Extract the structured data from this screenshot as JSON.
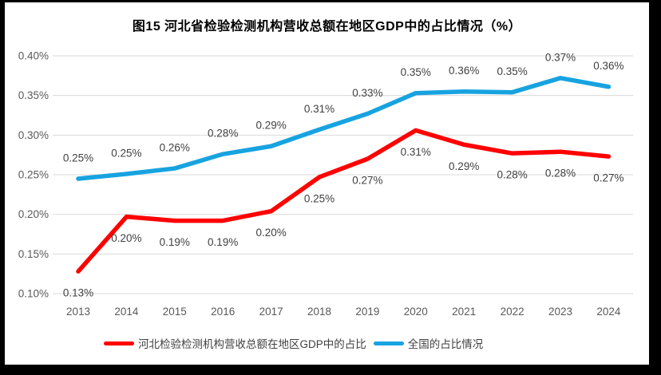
{
  "frame": {
    "border_color": "#000000",
    "background": "#ffffff"
  },
  "chart_data": {
    "type": "line",
    "title": "图15 河北省检验检测机构营收总额在地区GDP中的占比情况（%）",
    "categories": [
      "2013",
      "2014",
      "2015",
      "2016",
      "2017",
      "2018",
      "2019",
      "2020",
      "2021",
      "2022",
      "2023",
      "2024"
    ],
    "series": [
      {
        "id": "hebei",
        "name": "河北检验检测机构营收总额在地区GDP中的占比",
        "color": "#FF0000",
        "values": [
          0.13,
          0.2,
          0.19,
          0.19,
          0.2,
          0.25,
          0.27,
          0.31,
          0.29,
          0.28,
          0.28,
          0.27
        ],
        "labels": [
          "0.13%",
          "0.20%",
          "0.19%",
          "0.19%",
          "0.20%",
          "0.25%",
          "0.27%",
          "0.31%",
          "0.29%",
          "0.28%",
          "0.28%",
          "0.27%"
        ],
        "plot": [
          0.128,
          0.197,
          0.192,
          0.192,
          0.204,
          0.247,
          0.27,
          0.306,
          0.288,
          0.277,
          0.279,
          0.273
        ],
        "label_position": "below"
      },
      {
        "id": "national",
        "name": "全国的占比情况",
        "color": "#17A3E0",
        "values": [
          0.25,
          0.25,
          0.26,
          0.28,
          0.29,
          0.31,
          0.33,
          0.35,
          0.36,
          0.35,
          0.37,
          0.36
        ],
        "labels": [
          "0.25%",
          "0.25%",
          "0.26%",
          "0.28%",
          "0.29%",
          "0.31%",
          "0.33%",
          "0.35%",
          "0.36%",
          "0.35%",
          "0.37%",
          "0.36%"
        ],
        "plot": [
          0.245,
          0.251,
          0.258,
          0.276,
          0.286,
          0.307,
          0.327,
          0.353,
          0.355,
          0.354,
          0.372,
          0.361
        ],
        "label_position": "above"
      }
    ],
    "y_axis": {
      "min": 0.1,
      "max": 0.4,
      "step": 0.05,
      "tick_labels": [
        "0.10%",
        "0.15%",
        "0.20%",
        "0.25%",
        "0.30%",
        "0.35%",
        "0.40%"
      ]
    },
    "x_axis_label_color": "#595959",
    "data_label_color": "#404040",
    "gridline_color": "#D9D9D9",
    "grid": true,
    "legend_position": "bottom"
  },
  "legend": {
    "items": [
      {
        "label": "河北检验检测机构营收总额在地区GDP中的占比",
        "color": "#FF0000"
      },
      {
        "label": "全国的占比情况",
        "color": "#17A3E0"
      }
    ]
  }
}
